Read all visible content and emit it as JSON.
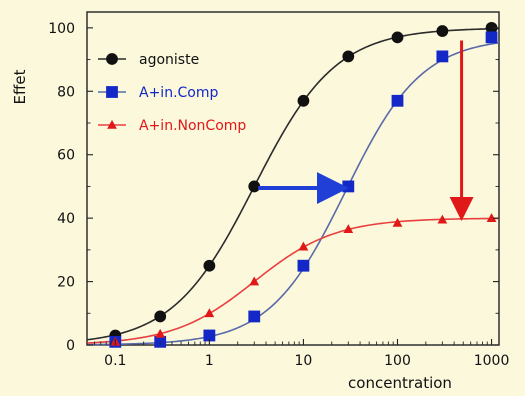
{
  "chart_data": {
    "type": "scatter",
    "xscale": "log",
    "x": [
      0.1,
      0.3,
      1,
      3,
      10,
      30,
      100,
      300,
      1000
    ],
    "xlim": [
      0.05,
      1200
    ],
    "ylim": [
      0,
      105
    ],
    "xticks": [
      0.1,
      1,
      10,
      100,
      1000
    ],
    "xtick_labels": [
      "0.1",
      "1",
      "10",
      "100",
      "1000"
    ],
    "yticks": [
      0,
      20,
      40,
      60,
      80,
      100
    ],
    "ytick_labels": [
      "0",
      "20",
      "40",
      "60",
      "80",
      "100"
    ],
    "xlabel": "concentration",
    "ylabel": "Effet",
    "grid": false,
    "legend_position": "top-left",
    "series": [
      {
        "name": "agoniste",
        "marker": "circle",
        "color": "#111111",
        "line_color": "#2b2b2b",
        "values": [
          3,
          9,
          25,
          50,
          77,
          91,
          97,
          99,
          100
        ]
      },
      {
        "name": "A+in.Comp",
        "marker": "square",
        "color": "#1428c8",
        "line_color": "#5a6aa8",
        "values": [
          1,
          1,
          3,
          9,
          25,
          50,
          77,
          91,
          97
        ]
      },
      {
        "name": "A+in.NonComp",
        "marker": "triangle",
        "color": "#e01818",
        "line_color": "#e84040",
        "values": [
          1,
          3.5,
          10,
          20,
          31,
          36.5,
          38.5,
          39.5,
          40
        ]
      }
    ],
    "annotations": [
      {
        "type": "arrow",
        "color": "#1f3fd6",
        "from": [
          3.3,
          49.5
        ],
        "to": [
          25,
          49.5
        ]
      },
      {
        "type": "arrow",
        "color": "#e01818",
        "from": [
          480,
          96
        ],
        "to": [
          480,
          41
        ]
      }
    ]
  },
  "colors": {
    "page_background": "#fbf8dc",
    "plot_background": "#fbf8dc",
    "axis": "#222222"
  }
}
